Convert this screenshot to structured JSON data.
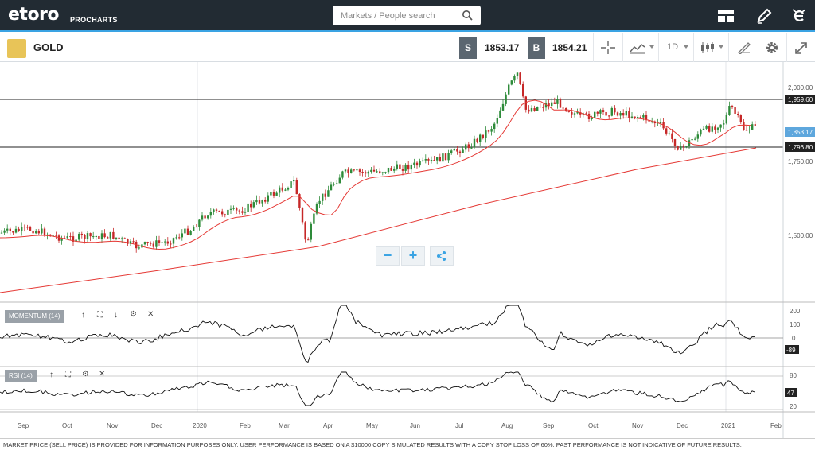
{
  "header": {
    "logo": "etoro",
    "logo_sub": "PROCHARTS",
    "search": {
      "placeholder": "Markets / People search",
      "value": ""
    },
    "icons": [
      "layout-icon",
      "pencil-icon",
      "etoro-e-icon"
    ]
  },
  "toolbar": {
    "instrument": "GOLD",
    "sell_label": "S",
    "sell_price": "1853.17",
    "buy_label": "B",
    "buy_price": "1854.21",
    "timeframe": "1D"
  },
  "price_axis": {
    "ticks": [
      "2,000.00",
      "1,750.00",
      "1,500.00"
    ],
    "tags": {
      "upper": "1,959.60",
      "current": "1,853.17",
      "lower": "1,796.80"
    }
  },
  "momentum_panel": {
    "label": "MOMENTUM (14)",
    "ticks": [
      "200",
      "100",
      "0"
    ],
    "value_tag": "-89"
  },
  "rsi_panel": {
    "label": "RSI (14)",
    "ticks": [
      "80",
      "20"
    ],
    "value_tag": "47"
  },
  "x_axis": {
    "labels": [
      "Sep",
      "Oct",
      "Nov",
      "Dec",
      "2020",
      "Feb",
      "Mar",
      "Apr",
      "May",
      "Jun",
      "Jul",
      "Aug",
      "Sep",
      "Oct",
      "Nov",
      "Dec",
      "2021",
      "Feb"
    ]
  },
  "colors": {
    "accent": "#3aa3e3",
    "ma": "#e53935",
    "up": "#2e8b3a",
    "down": "#c62828"
  },
  "disclaimer": "MARKET PRICE (SELL PRICE) IS PROVIDED FOR INFORMATION PURPOSES ONLY. USER PERFORMANCE IS BASED ON A $10000 COPY SIMULATED RESULTS WITH A COPY STOP LOSS OF 60%. PAST PERFORMANCE IS NOT INDICATIVE OF FUTURE RESULTS."
}
